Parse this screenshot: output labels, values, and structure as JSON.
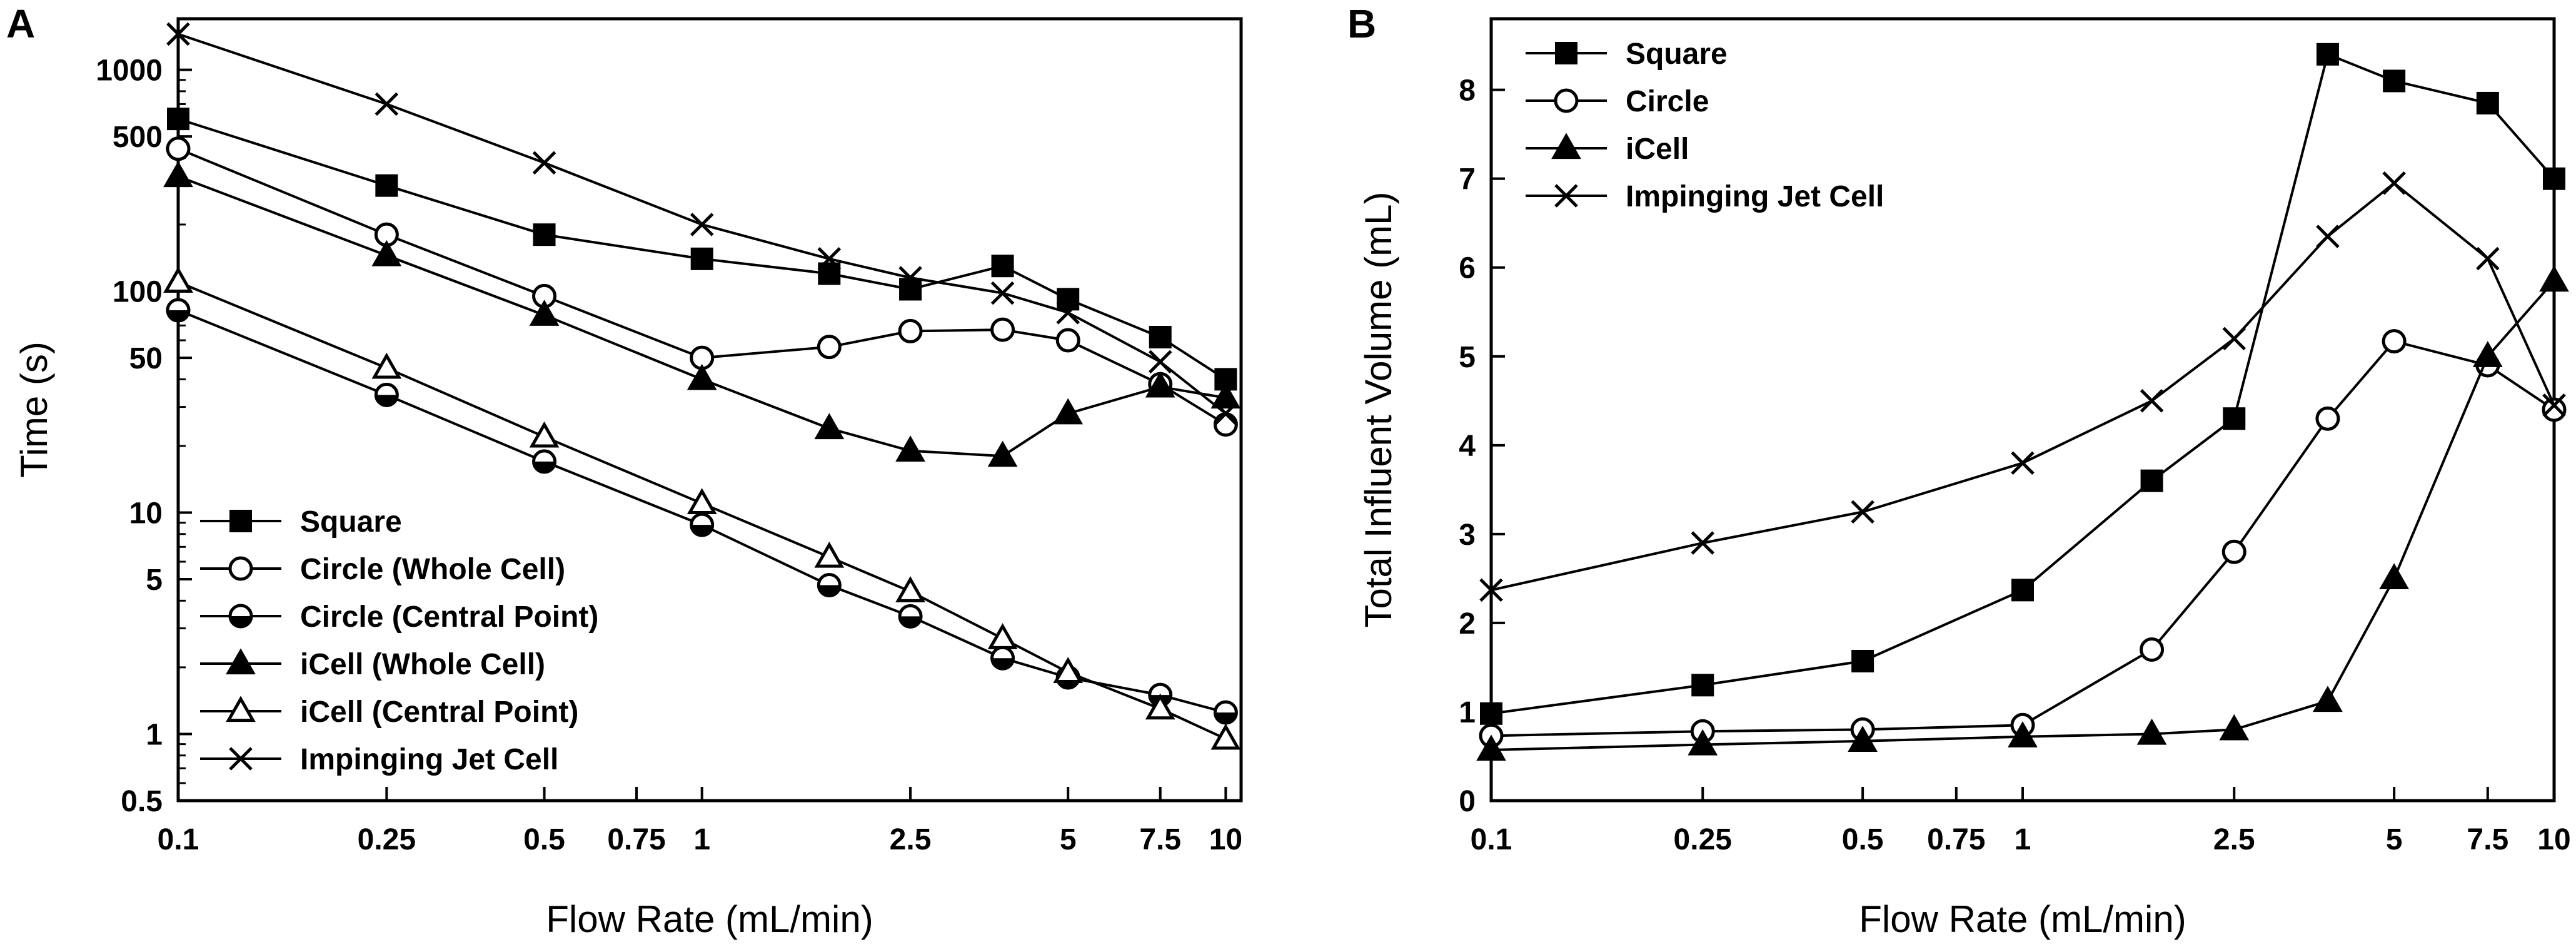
{
  "chart_data": [
    {
      "panel": "A",
      "type": "line",
      "xscale": "log",
      "yscale": "log",
      "xlabel": "Flow Rate (mL/min)",
      "ylabel": "Time (s)",
      "xlim": [
        0.1,
        10.7
      ],
      "ylim": [
        0.5,
        1700
      ],
      "x_ticks": [
        0.1,
        0.25,
        0.5,
        0.75,
        1,
        2.5,
        5,
        7.5,
        10
      ],
      "x_tick_labels": [
        "0.1",
        "0.25",
        "0.5",
        "0.75",
        "1",
        "2.5",
        "5",
        "7.5",
        "10"
      ],
      "y_ticks": [
        0.5,
        1,
        5,
        10,
        50,
        100,
        500,
        1000
      ],
      "y_tick_labels": [
        "0.5",
        "1",
        "5",
        "10",
        "50",
        "100",
        "500",
        "1000"
      ],
      "legend_position": "bottom-left",
      "series": [
        {
          "name": "Square",
          "marker": "square-filled",
          "x": [
            0.1,
            0.25,
            0.5,
            1,
            1.75,
            2.5,
            3.75,
            5,
            7.5,
            10
          ],
          "y": [
            600,
            300,
            180,
            140,
            120,
            102,
            130,
            92,
            62,
            40
          ]
        },
        {
          "name": "Circle (Whole Cell)",
          "marker": "circle-open",
          "x": [
            0.1,
            0.25,
            0.5,
            1,
            1.75,
            2.5,
            3.75,
            5,
            7.5,
            10
          ],
          "y": [
            440,
            180,
            95,
            50,
            56,
            66,
            67,
            60,
            38,
            25
          ]
        },
        {
          "name": "Circle (Central Point)",
          "marker": "circle-half",
          "x": [
            0.1,
            0.25,
            0.5,
            1,
            1.75,
            2.5,
            3.75,
            5,
            7.5,
            10
          ],
          "y": [
            82,
            34,
            17,
            8.8,
            4.7,
            3.4,
            2.2,
            1.8,
            1.5,
            1.25
          ]
        },
        {
          "name": "iCell (Whole Cell)",
          "marker": "triangle-filled",
          "x": [
            0.1,
            0.25,
            0.5,
            1,
            1.75,
            2.5,
            3.75,
            5,
            7.5,
            10
          ],
          "y": [
            330,
            145,
            78,
            40,
            24,
            19,
            18,
            28,
            37,
            33
          ]
        },
        {
          "name": "iCell (Central Point)",
          "marker": "triangle-open",
          "x": [
            0.1,
            0.25,
            0.5,
            1,
            1.75,
            2.5,
            3.75,
            5,
            7.5,
            10
          ],
          "y": [
            110,
            45,
            22,
            11,
            6.3,
            4.4,
            2.7,
            1.9,
            1.3,
            0.95
          ]
        },
        {
          "name": "Impinging Jet Cell",
          "marker": "x",
          "x": [
            0.1,
            0.25,
            0.5,
            1,
            1.75,
            2.5,
            3.75,
            5,
            7.5,
            10
          ],
          "y": [
            1450,
            700,
            380,
            200,
            140,
            115,
            98,
            80,
            48,
            28
          ]
        }
      ]
    },
    {
      "panel": "B",
      "type": "line",
      "xscale": "log",
      "yscale": "linear",
      "xlabel": "Flow Rate (mL/min)",
      "ylabel": "Total Influent Volume (mL)",
      "xlim": [
        0.1,
        10
      ],
      "ylim": [
        0,
        8.8
      ],
      "x_ticks": [
        0.1,
        0.25,
        0.5,
        0.75,
        1,
        2.5,
        5,
        7.5,
        10
      ],
      "x_tick_labels": [
        "0.1",
        "0.25",
        "0.5",
        "0.75",
        "1",
        "2.5",
        "5",
        "7.5",
        "10"
      ],
      "y_ticks": [
        0,
        1,
        2,
        3,
        4,
        5,
        6,
        7,
        8
      ],
      "y_tick_labels": [
        "0",
        "1",
        "2",
        "3",
        "4",
        "5",
        "6",
        "7",
        "8"
      ],
      "legend_position": "top-left",
      "series": [
        {
          "name": "Square",
          "marker": "square-filled",
          "x": [
            0.1,
            0.25,
            0.5,
            1,
            1.75,
            2.5,
            3.75,
            5,
            7.5,
            10
          ],
          "y": [
            0.98,
            1.3,
            1.57,
            2.37,
            3.6,
            4.3,
            8.4,
            8.1,
            7.85,
            7.0
          ]
        },
        {
          "name": "Circle",
          "marker": "circle-open",
          "x": [
            0.1,
            0.25,
            0.5,
            1,
            1.75,
            2.5,
            3.75,
            5,
            7.5,
            10
          ],
          "y": [
            0.73,
            0.78,
            0.8,
            0.85,
            1.7,
            2.8,
            4.3,
            5.17,
            4.9,
            4.4
          ]
        },
        {
          "name": "iCell",
          "marker": "triangle-filled",
          "x": [
            0.1,
            0.25,
            0.5,
            1,
            1.75,
            2.5,
            3.75,
            5,
            7.5,
            10
          ],
          "y": [
            0.57,
            0.63,
            0.67,
            0.72,
            0.75,
            0.8,
            1.12,
            2.5,
            5.0,
            5.85
          ]
        },
        {
          "name": "Impinging Jet Cell",
          "marker": "x",
          "x": [
            0.1,
            0.25,
            0.5,
            1,
            1.75,
            2.5,
            3.75,
            5,
            7.5,
            10
          ],
          "y": [
            2.37,
            2.9,
            3.25,
            3.8,
            4.5,
            5.2,
            6.35,
            6.95,
            6.1,
            4.45
          ]
        }
      ]
    }
  ]
}
